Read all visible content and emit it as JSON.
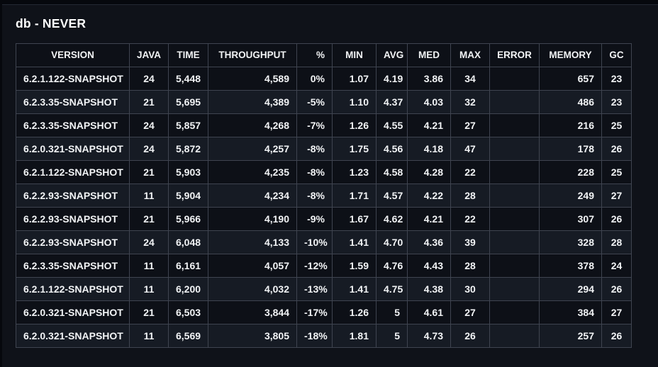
{
  "title": "db - NEVER",
  "theme": {
    "page_bg": "#0f1219",
    "topbar_bg": "#06080d",
    "row_dark": "#0d1017",
    "row_light": "#161b24",
    "border": "#3f4450",
    "text": "#f2f4f6"
  },
  "table": {
    "columns": [
      "VERSION",
      "JAVA",
      "TIME",
      "THROUGHPUT",
      "%",
      "MIN",
      "AVG",
      "MED",
      "MAX",
      "ERROR",
      "MEMORY",
      "GC"
    ],
    "rows": [
      [
        "6.2.1.122-SNAPSHOT",
        "24",
        "5,448",
        "4,589",
        "0%",
        "1.07",
        "4.19",
        "3.86",
        "34",
        "",
        "657",
        "23"
      ],
      [
        "6.2.3.35-SNAPSHOT",
        "21",
        "5,695",
        "4,389",
        "-5%",
        "1.10",
        "4.37",
        "4.03",
        "32",
        "",
        "486",
        "23"
      ],
      [
        "6.2.3.35-SNAPSHOT",
        "24",
        "5,857",
        "4,268",
        "-7%",
        "1.26",
        "4.55",
        "4.21",
        "27",
        "",
        "216",
        "25"
      ],
      [
        "6.2.0.321-SNAPSHOT",
        "24",
        "5,872",
        "4,257",
        "-8%",
        "1.75",
        "4.56",
        "4.18",
        "47",
        "",
        "178",
        "26"
      ],
      [
        "6.2.1.122-SNAPSHOT",
        "21",
        "5,903",
        "4,235",
        "-8%",
        "1.23",
        "4.58",
        "4.28",
        "22",
        "",
        "228",
        "25"
      ],
      [
        "6.2.2.93-SNAPSHOT",
        "11",
        "5,904",
        "4,234",
        "-8%",
        "1.71",
        "4.57",
        "4.22",
        "28",
        "",
        "249",
        "27"
      ],
      [
        "6.2.2.93-SNAPSHOT",
        "21",
        "5,966",
        "4,190",
        "-9%",
        "1.67",
        "4.62",
        "4.21",
        "22",
        "",
        "307",
        "26"
      ],
      [
        "6.2.2.93-SNAPSHOT",
        "24",
        "6,048",
        "4,133",
        "-10%",
        "1.41",
        "4.70",
        "4.36",
        "39",
        "",
        "328",
        "28"
      ],
      [
        "6.2.3.35-SNAPSHOT",
        "11",
        "6,161",
        "4,057",
        "-12%",
        "1.59",
        "4.76",
        "4.43",
        "28",
        "",
        "378",
        "24"
      ],
      [
        "6.2.1.122-SNAPSHOT",
        "11",
        "6,200",
        "4,032",
        "-13%",
        "1.41",
        "4.75",
        "4.38",
        "30",
        "",
        "294",
        "26"
      ],
      [
        "6.2.0.321-SNAPSHOT",
        "21",
        "6,503",
        "3,844",
        "-17%",
        "1.26",
        "5",
        "4.61",
        "27",
        "",
        "384",
        "27"
      ],
      [
        "6.2.0.321-SNAPSHOT",
        "11",
        "6,569",
        "3,805",
        "-18%",
        "1.81",
        "5",
        "4.73",
        "26",
        "",
        "257",
        "26"
      ]
    ]
  }
}
